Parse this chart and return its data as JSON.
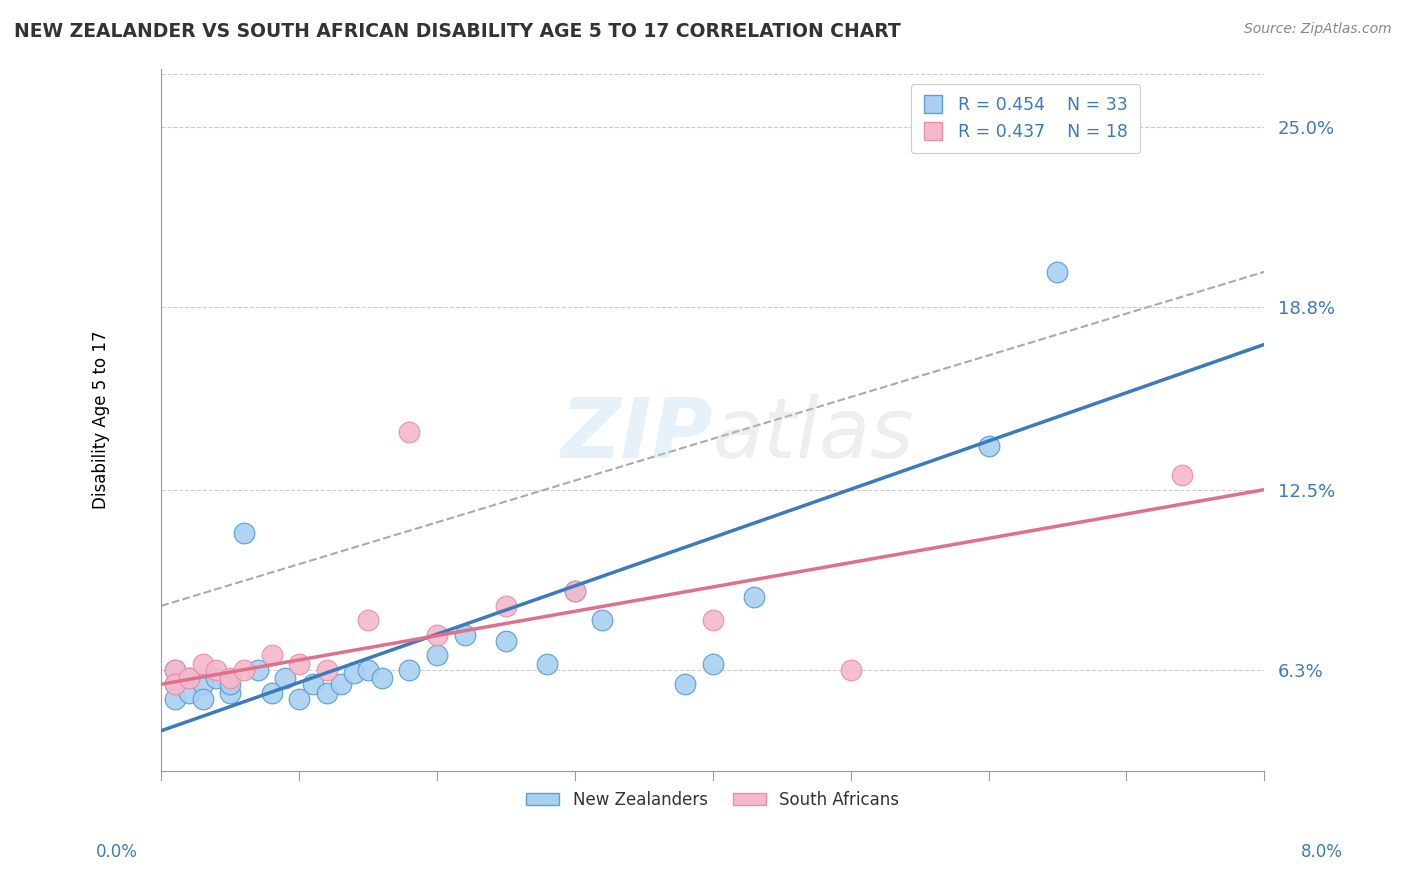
{
  "title": "NEW ZEALANDER VS SOUTH AFRICAN DISABILITY AGE 5 TO 17 CORRELATION CHART",
  "source": "Source: ZipAtlas.com",
  "ylabel": "Disability Age 5 to 17",
  "ytick_labels": [
    "6.3%",
    "12.5%",
    "18.8%",
    "25.0%"
  ],
  "ytick_values": [
    0.063,
    0.125,
    0.188,
    0.25
  ],
  "xmin": 0.0,
  "xmax": 0.08,
  "ymin": 0.028,
  "ymax": 0.27,
  "legend_r1": "R = 0.454",
  "legend_n1": "N = 33",
  "legend_r2": "R = 0.437",
  "legend_n2": "N = 18",
  "color_nz": "#a8d0f0",
  "color_sa": "#f5b8cb",
  "color_nz_line": "#3a7abf",
  "color_sa_line": "#e0708a",
  "color_nz_edge": "#5a9fd4",
  "color_sa_edge": "#e890a8",
  "nz_x": [
    0.001,
    0.001,
    0.001,
    0.002,
    0.002,
    0.003,
    0.003,
    0.004,
    0.005,
    0.005,
    0.006,
    0.007,
    0.008,
    0.009,
    0.01,
    0.011,
    0.012,
    0.013,
    0.014,
    0.015,
    0.016,
    0.018,
    0.02,
    0.022,
    0.025,
    0.028,
    0.03,
    0.032,
    0.038,
    0.04,
    0.043,
    0.06,
    0.065
  ],
  "nz_y": [
    0.063,
    0.058,
    0.053,
    0.06,
    0.055,
    0.058,
    0.053,
    0.06,
    0.055,
    0.058,
    0.11,
    0.063,
    0.055,
    0.06,
    0.053,
    0.058,
    0.055,
    0.058,
    0.062,
    0.063,
    0.06,
    0.063,
    0.068,
    0.075,
    0.073,
    0.065,
    0.09,
    0.08,
    0.058,
    0.065,
    0.088,
    0.14,
    0.2
  ],
  "sa_x": [
    0.001,
    0.001,
    0.002,
    0.003,
    0.004,
    0.005,
    0.006,
    0.008,
    0.01,
    0.012,
    0.015,
    0.018,
    0.02,
    0.025,
    0.03,
    0.04,
    0.05,
    0.074
  ],
  "sa_y": [
    0.063,
    0.058,
    0.06,
    0.065,
    0.063,
    0.06,
    0.063,
    0.068,
    0.065,
    0.063,
    0.08,
    0.145,
    0.075,
    0.085,
    0.09,
    0.08,
    0.063,
    0.13
  ],
  "nz_line_x": [
    0.0,
    0.08
  ],
  "nz_line_y": [
    0.042,
    0.175
  ],
  "sa_line_x": [
    0.0,
    0.08
  ],
  "sa_line_y": [
    0.058,
    0.125
  ],
  "dash_line_x": [
    0.0,
    0.08
  ],
  "dash_line_y": [
    0.085,
    0.2
  ]
}
